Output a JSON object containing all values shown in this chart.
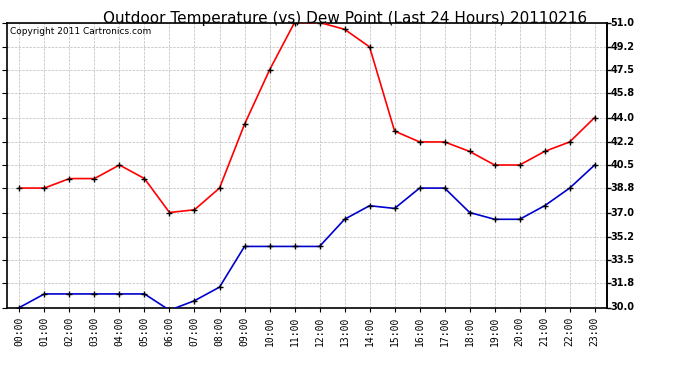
{
  "title": "Outdoor Temperature (vs) Dew Point (Last 24 Hours) 20110216",
  "copyright": "Copyright 2011 Cartronics.com",
  "hours": [
    "00:00",
    "01:00",
    "02:00",
    "03:00",
    "04:00",
    "05:00",
    "06:00",
    "07:00",
    "08:00",
    "09:00",
    "10:00",
    "11:00",
    "12:00",
    "13:00",
    "14:00",
    "15:00",
    "16:00",
    "17:00",
    "18:00",
    "19:00",
    "20:00",
    "21:00",
    "22:00",
    "23:00"
  ],
  "temp": [
    38.8,
    38.8,
    39.5,
    39.5,
    40.5,
    39.5,
    37.0,
    37.2,
    38.8,
    43.5,
    47.5,
    51.0,
    51.0,
    50.5,
    49.2,
    43.0,
    42.2,
    42.2,
    41.5,
    40.5,
    40.5,
    41.5,
    42.2,
    44.0
  ],
  "dew": [
    30.0,
    31.0,
    31.0,
    31.0,
    31.0,
    31.0,
    29.8,
    30.5,
    31.5,
    34.5,
    34.5,
    34.5,
    34.5,
    36.5,
    37.5,
    37.3,
    38.8,
    38.8,
    37.0,
    36.5,
    36.5,
    37.5,
    38.8,
    40.5
  ],
  "temp_color": "#ff0000",
  "dew_color": "#0000cc",
  "ylim": [
    30.0,
    51.0
  ],
  "yticks": [
    30.0,
    31.8,
    33.5,
    35.2,
    37.0,
    38.8,
    40.5,
    42.2,
    44.0,
    45.8,
    47.5,
    49.2,
    51.0
  ],
  "bg_color": "#ffffff",
  "grid_color": "#bbbbbb",
  "marker": "+",
  "marker_color": "#000000",
  "marker_size": 5,
  "line_width": 1.2,
  "title_fontsize": 11,
  "axis_fontsize": 7,
  "copyright_fontsize": 6.5
}
